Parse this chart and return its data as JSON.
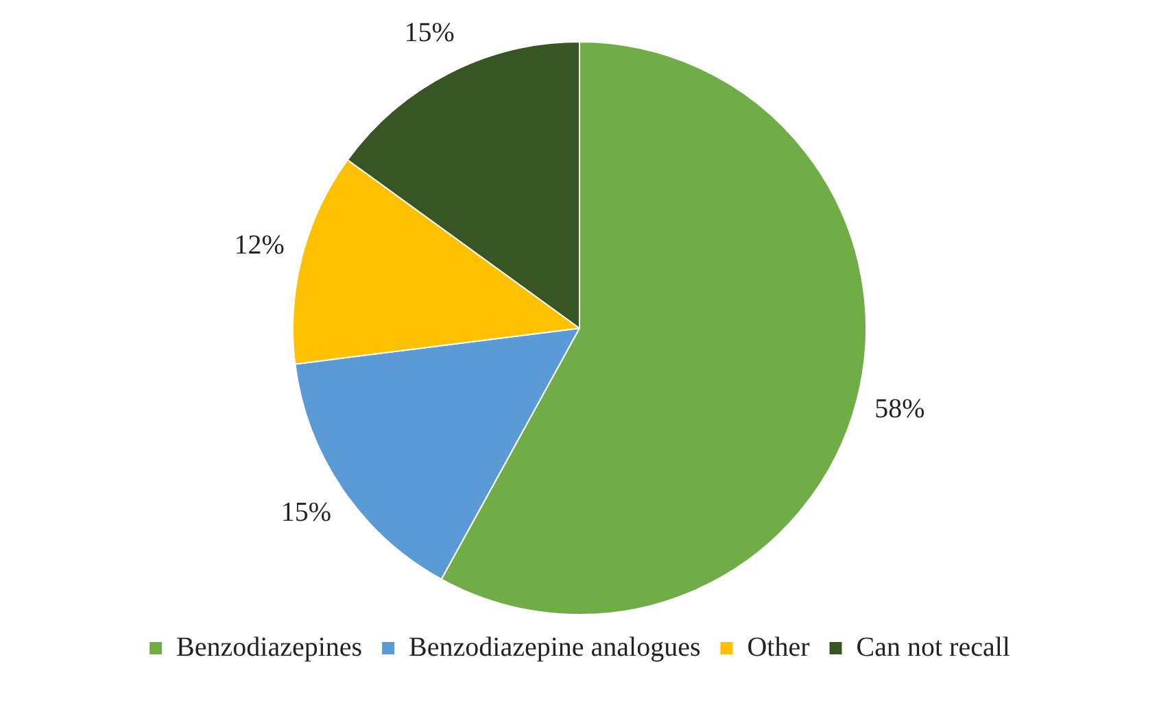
{
  "chart_data": {
    "type": "pie",
    "categories": [
      "Benzodiazepines",
      "Benzodiazepine analogues",
      "Other",
      "Can not recall"
    ],
    "values": [
      58,
      15,
      12,
      15
    ],
    "colors": [
      "#70ad47",
      "#5b9bd5",
      "#ffc000",
      "#375623"
    ],
    "value_labels": [
      "58%",
      "15%",
      "12%",
      "15%"
    ],
    "legend": "bottom"
  }
}
